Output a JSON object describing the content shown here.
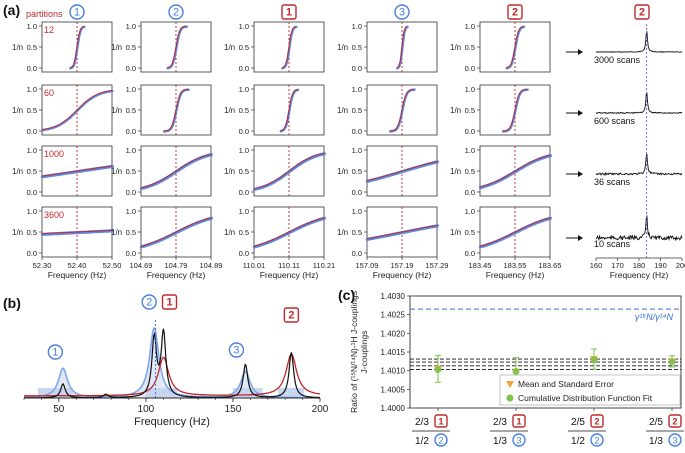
{
  "figure": {
    "panel_a_label": "(a)",
    "panel_b_label": "(b)",
    "panel_c_label": "(c)",
    "partitions_label": "partitions",
    "colors": {
      "blue": "#4a7fe0",
      "red": "#c0282a",
      "black": "#111111",
      "fill_blue": "#c9d6ef",
      "dash_blue": "#3b6fd8",
      "green": "#7cc24a",
      "orange": "#f2a33a"
    }
  },
  "chart_data": [
    {
      "id": "a",
      "type": "scatter",
      "description_kind": "grid of cumulative distribution plots with fitted curves",
      "ylabel": "1/n",
      "yticks": [
        "0.0",
        "0.5",
        "1.0"
      ],
      "xlabel": "Frequency (Hz)",
      "partitions": [
        "12",
        "60",
        "1000",
        "3600"
      ],
      "columns": [
        {
          "badge": "1",
          "badge_style": "circle",
          "center": 52.4,
          "xlim": [
            52.3,
            52.5
          ],
          "ticks": [
            "52.30",
            "52.40",
            "52.50"
          ]
        },
        {
          "badge": "2",
          "badge_style": "circle",
          "center": 104.79,
          "xlim": [
            104.69,
            104.89
          ],
          "ticks": [
            "104.69",
            "104.79",
            "104.89"
          ]
        },
        {
          "badge": "1",
          "badge_style": "square",
          "center": 110.11,
          "xlim": [
            110.01,
            110.21
          ],
          "ticks": [
            "110.01",
            "110.11",
            "110.21"
          ]
        },
        {
          "badge": "3",
          "badge_style": "circle",
          "center": 157.19,
          "xlim": [
            157.09,
            157.29
          ],
          "ticks": [
            "157.09",
            "157.19",
            "157.29"
          ]
        },
        {
          "badge": "2",
          "badge_style": "square",
          "center": 183.55,
          "xlim": [
            183.45,
            183.65
          ],
          "ticks": [
            "183.45",
            "183.55",
            "183.65"
          ]
        }
      ],
      "widths": [
        [
          0.004,
          0.005,
          0.004,
          0.003,
          0.005
        ],
        [
          0.03,
          0.006,
          0.005,
          0.006,
          0.006
        ],
        [
          0.2,
          0.045,
          0.04,
          0.1,
          0.05
        ],
        [
          0.6,
          0.06,
          0.06,
          0.15,
          0.06
        ]
      ],
      "spectra": {
        "badge": "2",
        "badge_style": "square",
        "scans": [
          "3000 scans",
          "600 scans",
          "36 scans",
          "10 scans"
        ],
        "xlim": [
          160,
          200
        ],
        "ticks": [
          "160",
          "170",
          "180",
          "190",
          "200"
        ],
        "peak": 183.55,
        "xlabel": "Frequency (Hz)"
      }
    },
    {
      "id": "b",
      "type": "line",
      "xlabel": "Frequency (Hz)",
      "xlim": [
        30,
        200
      ],
      "ticks": [
        "50",
        "100",
        "150",
        "200"
      ],
      "series": [
        {
          "name": "1H spectrum (light blue)",
          "peaks": [
            [
              52.4,
              0.42
            ],
            [
              104.79,
              1.0
            ],
            [
              157.19,
              0.38
            ]
          ]
        },
        {
          "name": "15N spectrum (red)",
          "peaks": [
            [
              110.11,
              0.55
            ],
            [
              183.55,
              0.6
            ]
          ]
        },
        {
          "name": "Combined (black)",
          "peaks": [
            [
              52.4,
              0.2
            ],
            [
              77,
              0.05
            ],
            [
              104.79,
              0.85
            ],
            [
              110.11,
              0.92
            ],
            [
              157.19,
              0.48
            ],
            [
              183.55,
              0.65
            ]
          ]
        }
      ],
      "labels": [
        {
          "badge": "1",
          "badge_style": "circle",
          "x": 48
        },
        {
          "badge": "2",
          "badge_style": "circle",
          "x": 104.79
        },
        {
          "badge": "1",
          "badge_style": "square",
          "x": 110.11
        },
        {
          "badge": "3",
          "badge_style": "circle",
          "x": 152
        },
        {
          "badge": "2",
          "badge_style": "square",
          "x": 183.55
        }
      ]
    },
    {
      "id": "c",
      "type": "scatter",
      "ylabel": "Ratio of (¹⁵N/¹⁴N)-¹H J-couplings",
      "ylim": [
        1.4,
        1.403
      ],
      "yticks": [
        "1.4000",
        "1.4005",
        "1.4010",
        "1.4015",
        "1.4020",
        "1.4025",
        "1.4030"
      ],
      "reference_line": {
        "value": 1.40265,
        "label": "γ¹⁵N/γ¹⁴N"
      },
      "black_dashed_lines": [
        1.40103,
        1.40113,
        1.40123,
        1.40131
      ],
      "categories": [
        {
          "top": "2/3",
          "top_badge": "1",
          "bottom": "1/2",
          "bottom_badge": "2"
        },
        {
          "top": "2/3",
          "top_badge": "1",
          "bottom": "1/3",
          "bottom_badge": "3"
        },
        {
          "top": "2/5",
          "top_badge": "2",
          "bottom": "1/2",
          "bottom_badge": "2"
        },
        {
          "top": "2/5",
          "top_badge": "2",
          "bottom": "1/3",
          "bottom_badge": "3"
        }
      ],
      "mean": [
        1.40105,
        1.40097,
        1.40131,
        1.40125
      ],
      "error": [
        0.00036,
        0.00038,
        0.00027,
        0.00015
      ],
      "cdf_fit": [
        1.40103,
        1.40098,
        1.40129,
        1.40124
      ],
      "legend": [
        "Mean and Standard Error",
        "Cumulative Distribution Function Fit"
      ]
    }
  ]
}
